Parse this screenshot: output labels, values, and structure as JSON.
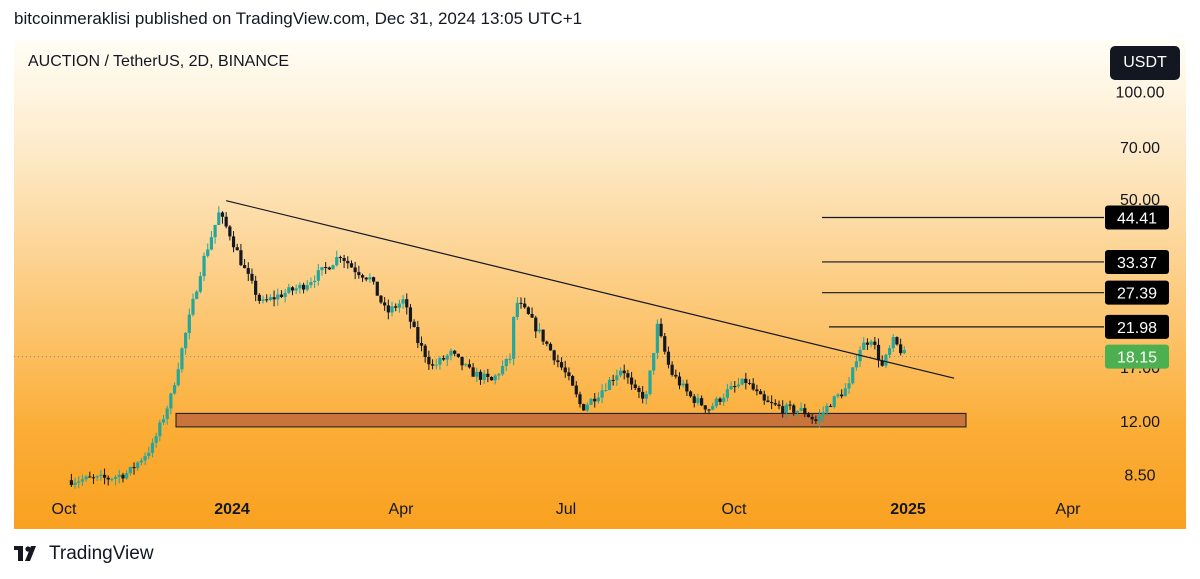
{
  "header": {
    "published_line": "bitcoinmeraklisi published on TradingView.com, Dec 31, 2024 13:05 UTC+1"
  },
  "chart_header": {
    "symbol_title": "AUCTION / TetherUS, 2D, BINANCE",
    "currency_button": "USDT"
  },
  "footer": {
    "brand": "TradingView"
  },
  "colors": {
    "bull": "#26a69a",
    "bear": "#131722",
    "support_zone": "#c8743a",
    "last_price_badge": "#4caf50",
    "level_badge": "#000000"
  },
  "chart_data": {
    "type": "candlestick",
    "scale": "log",
    "ylim": [
      7.6,
      140
    ],
    "x_tick_labels": [
      {
        "label": "Oct",
        "bold": false
      },
      {
        "label": "2024",
        "bold": true
      },
      {
        "label": "Apr",
        "bold": false
      },
      {
        "label": "Jul",
        "bold": false
      },
      {
        "label": "Oct",
        "bold": false
      },
      {
        "label": "2025",
        "bold": true
      },
      {
        "label": "Apr",
        "bold": false
      }
    ],
    "y_tick_labels": [
      {
        "label": "100.00",
        "value": 100
      },
      {
        "label": "70.00",
        "value": 70
      },
      {
        "label": "50.00",
        "value": 50
      },
      {
        "label": "17.00",
        "value": 17
      },
      {
        "label": "12.00",
        "value": 12
      },
      {
        "label": "8.50",
        "value": 8.5
      }
    ],
    "levels": [
      {
        "label": "44.41",
        "value": 44.41
      },
      {
        "label": "33.37",
        "value": 33.37
      },
      {
        "label": "27.39",
        "value": 27.39
      },
      {
        "label": "21.98",
        "value": 21.98
      }
    ],
    "last_price": {
      "label": "18.15",
      "value": 18.15
    },
    "support_zone": {
      "low": 11.55,
      "high": 12.6
    },
    "trendline": [
      {
        "date": "2023-12-28",
        "value": 49.5
      },
      {
        "date": "2025-01-26",
        "value": 15.8
      }
    ],
    "price_path": [
      [
        "2023-10-05",
        8.2
      ],
      [
        "2023-10-25",
        8.3
      ],
      [
        "2023-11-05",
        8.6
      ],
      [
        "2023-11-18",
        10.2
      ],
      [
        "2023-11-28",
        14.0
      ],
      [
        "2023-12-05",
        20.0
      ],
      [
        "2023-12-15",
        33.0
      ],
      [
        "2023-12-24",
        45.5
      ],
      [
        "2023-12-30",
        40.0
      ],
      [
        "2024-01-06",
        32.5
      ],
      [
        "2024-01-16",
        25.5
      ],
      [
        "2024-01-26",
        27.0
      ],
      [
        "2024-02-07",
        28.5
      ],
      [
        "2024-02-20",
        32.0
      ],
      [
        "2024-02-28",
        35.0
      ],
      [
        "2024-03-06",
        32.0
      ],
      [
        "2024-03-15",
        30.0
      ],
      [
        "2024-03-24",
        24.0
      ],
      [
        "2024-04-02",
        26.0
      ],
      [
        "2024-04-10",
        20.0
      ],
      [
        "2024-04-18",
        17.0
      ],
      [
        "2024-04-28",
        18.5
      ],
      [
        "2024-05-08",
        16.5
      ],
      [
        "2024-05-20",
        15.5
      ],
      [
        "2024-05-30",
        18.0
      ],
      [
        "2024-06-02",
        26.0
      ],
      [
        "2024-06-08",
        24.0
      ],
      [
        "2024-06-18",
        20.0
      ],
      [
        "2024-06-30",
        16.0
      ],
      [
        "2024-07-08",
        13.0
      ],
      [
        "2024-07-18",
        14.5
      ],
      [
        "2024-07-30",
        17.0
      ],
      [
        "2024-08-05",
        14.5
      ],
      [
        "2024-08-12",
        14.0
      ],
      [
        "2024-08-18",
        22.0
      ],
      [
        "2024-08-25",
        16.5
      ],
      [
        "2024-09-05",
        14.0
      ],
      [
        "2024-09-15",
        13.0
      ],
      [
        "2024-09-25",
        14.5
      ],
      [
        "2024-10-05",
        15.5
      ],
      [
        "2024-10-15",
        13.5
      ],
      [
        "2024-10-25",
        13.0
      ],
      [
        "2024-11-05",
        12.8
      ],
      [
        "2024-11-12",
        12.0
      ],
      [
        "2024-11-20",
        13.5
      ],
      [
        "2024-11-30",
        15.0
      ],
      [
        "2024-12-05",
        19.0
      ],
      [
        "2024-12-12",
        20.5
      ],
      [
        "2024-12-18",
        17.0
      ],
      [
        "2024-12-24",
        20.0
      ],
      [
        "2024-12-31",
        18.15
      ]
    ]
  }
}
